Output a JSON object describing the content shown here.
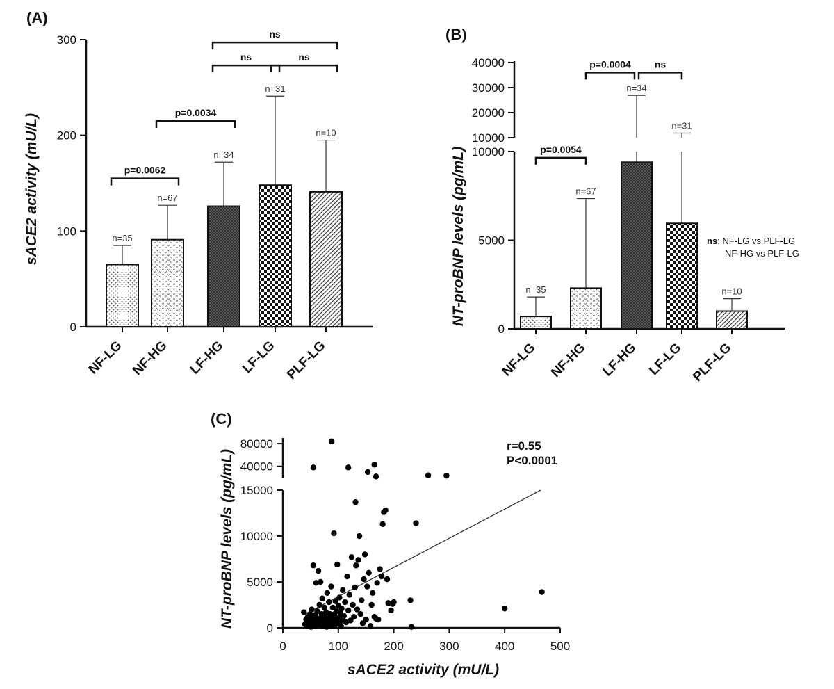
{
  "chart_data": [
    {
      "panel": "(A)",
      "type": "bar",
      "ylabel": "sACE2 activity (mU/L)",
      "ylim": [
        0,
        300
      ],
      "yticks": [
        0,
        100,
        200,
        300
      ],
      "categories": [
        "NF-LG",
        "NF-HG",
        "LF-HG",
        "LF-LG",
        "PLF-LG"
      ],
      "values": [
        65,
        91,
        126,
        148,
        141
      ],
      "error_upper": [
        85,
        127,
        172,
        241,
        195
      ],
      "n_labels": [
        "n=35",
        "n=67",
        "n=34",
        "n=31",
        "n=10"
      ],
      "patterns": [
        "dots",
        "hearts",
        "dense",
        "checker",
        "diagonal"
      ],
      "comparisons": [
        {
          "from": 0,
          "to": 1,
          "label": "p=0.0062",
          "y": 155
        },
        {
          "from": 1,
          "to": 2,
          "label": "p=0.0034",
          "y": 215
        },
        {
          "from": 2,
          "to": 3,
          "label": "ns",
          "y": 273
        },
        {
          "from": 3,
          "to": 4,
          "label": "ns",
          "y": 273
        },
        {
          "from": 2,
          "to": 4,
          "label": "ns",
          "y": 297
        }
      ]
    },
    {
      "panel": "(B)",
      "type": "bar",
      "ylabel": "NT-proBNP levels (pg/mL)",
      "broken_axis": true,
      "lower_ylim": [
        0,
        10000
      ],
      "lower_yticks": [
        0,
        5000,
        10000
      ],
      "upper_ylim": [
        10000,
        40000
      ],
      "upper_yticks": [
        10000,
        20000,
        30000,
        40000
      ],
      "categories": [
        "NF-LG",
        "NF-HG",
        "LF-HG",
        "LF-LG",
        "PLF-LG"
      ],
      "values": [
        700,
        2300,
        9400,
        5950,
        1000
      ],
      "error_upper": [
        1800,
        7350,
        26900,
        11800,
        1700
      ],
      "n_labels": [
        "n=35",
        "n=67",
        "n=34",
        "n=31",
        "n=10"
      ],
      "patterns": [
        "dots",
        "hearts",
        "dense",
        "checker",
        "diagonal"
      ],
      "comparisons": [
        {
          "from": 0,
          "to": 1,
          "label": "p=0.0054",
          "axis": "lower",
          "y": 9650
        },
        {
          "from": 2,
          "to": 3,
          "label": "ns",
          "axis": "upper",
          "y": 36000
        },
        {
          "from": 1,
          "to": 2,
          "label": "p=0.0004",
          "axis": "upper",
          "y": 36000
        }
      ],
      "annotation": {
        "bold": "ns",
        "lines": [
          ": NF-LG vs PLF-LG",
          "NF-HG vs PLF-LG"
        ]
      }
    },
    {
      "panel": "(C)",
      "type": "scatter",
      "xlabel": "sACE2 activity (mU/L)",
      "ylabel": "NT-proBNP levels (pg/mL)",
      "xlim": [
        0,
        500
      ],
      "xticks": [
        0,
        100,
        200,
        300,
        400,
        500
      ],
      "broken_axis": true,
      "lower_ylim": [
        0,
        15000
      ],
      "lower_yticks": [
        0,
        5000,
        10000,
        15000
      ],
      "upper_ylim": [
        20000,
        90000
      ],
      "upper_yticks": [
        40000,
        80000
      ],
      "stats": [
        "r=0.55",
        "P<0.0001"
      ],
      "fit_line": {
        "x": [
          40,
          465
        ],
        "y": [
          1500,
          15000
        ]
      },
      "points": [
        [
          55,
          38000
        ],
        [
          88,
          84000
        ],
        [
          118,
          38000
        ],
        [
          153,
          30000
        ],
        [
          165,
          43000
        ],
        [
          168,
          22000
        ],
        [
          262,
          24000
        ],
        [
          295,
          23500
        ],
        [
          38,
          1700
        ],
        [
          40,
          400
        ],
        [
          42,
          900
        ],
        [
          44,
          200
        ],
        [
          45,
          1200
        ],
        [
          46,
          600
        ],
        [
          48,
          300
        ],
        [
          49,
          1500
        ],
        [
          50,
          800
        ],
        [
          51,
          100
        ],
        [
          52,
          2000
        ],
        [
          53,
          500
        ],
        [
          54,
          1100
        ],
        [
          55,
          6800
        ],
        [
          56,
          300
        ],
        [
          57,
          900
        ],
        [
          58,
          1400
        ],
        [
          59,
          200
        ],
        [
          60,
          4900
        ],
        [
          61,
          700
        ],
        [
          62,
          1800
        ],
        [
          63,
          400
        ],
        [
          64,
          6200
        ],
        [
          65,
          1000
        ],
        [
          66,
          2500
        ],
        [
          67,
          300
        ],
        [
          68,
          5000
        ],
        [
          69,
          800
        ],
        [
          70,
          1500
        ],
        [
          71,
          3200
        ],
        [
          72,
          200
        ],
        [
          73,
          900
        ],
        [
          74,
          1300
        ],
        [
          75,
          2200
        ],
        [
          76,
          600
        ],
        [
          77,
          400
        ],
        [
          78,
          1700
        ],
        [
          79,
          100
        ],
        [
          80,
          3800
        ],
        [
          81,
          1000
        ],
        [
          82,
          500
        ],
        [
          83,
          2800
        ],
        [
          84,
          300
        ],
        [
          85,
          1500
        ],
        [
          86,
          800
        ],
        [
          87,
          4500
        ],
        [
          88,
          1200
        ],
        [
          89,
          200
        ],
        [
          90,
          2200
        ],
        [
          91,
          700
        ],
        [
          92,
          10300
        ],
        [
          93,
          1500
        ],
        [
          94,
          300
        ],
        [
          95,
          2900
        ],
        [
          96,
          900
        ],
        [
          97,
          1800
        ],
        [
          98,
          6900
        ],
        [
          99,
          500
        ],
        [
          100,
          2400
        ],
        [
          101,
          1100
        ],
        [
          102,
          3300
        ],
        [
          103,
          700
        ],
        [
          104,
          1600
        ],
        [
          105,
          200
        ],
        [
          106,
          2100
        ],
        [
          107,
          900
        ],
        [
          108,
          4100
        ],
        [
          110,
          1300
        ],
        [
          112,
          2800
        ],
        [
          114,
          600
        ],
        [
          116,
          5600
        ],
        [
          118,
          1900
        ],
        [
          120,
          3600
        ],
        [
          122,
          800
        ],
        [
          124,
          7700
        ],
        [
          126,
          2500
        ],
        [
          128,
          1200
        ],
        [
          130,
          4400
        ],
        [
          131,
          13700
        ],
        [
          132,
          6800
        ],
        [
          134,
          2000
        ],
        [
          136,
          7400
        ],
        [
          138,
          10000
        ],
        [
          140,
          1500
        ],
        [
          142,
          3000
        ],
        [
          144,
          500
        ],
        [
          146,
          5300
        ],
        [
          148,
          8000
        ],
        [
          150,
          900
        ],
        [
          152,
          4500
        ],
        [
          155,
          6000
        ],
        [
          158,
          200
        ],
        [
          160,
          2500
        ],
        [
          162,
          3800
        ],
        [
          165,
          1200
        ],
        [
          168,
          1000
        ],
        [
          170,
          4900
        ],
        [
          172,
          900
        ],
        [
          175,
          6400
        ],
        [
          178,
          5600
        ],
        [
          180,
          11300
        ],
        [
          182,
          12600
        ],
        [
          185,
          12800
        ],
        [
          188,
          5300
        ],
        [
          190,
          2700
        ],
        [
          195,
          1900
        ],
        [
          198,
          2600
        ],
        [
          200,
          2800
        ],
        [
          230,
          3000
        ],
        [
          232,
          100
        ],
        [
          240,
          11400
        ],
        [
          400,
          2100
        ],
        [
          467,
          3900
        ]
      ]
    }
  ]
}
